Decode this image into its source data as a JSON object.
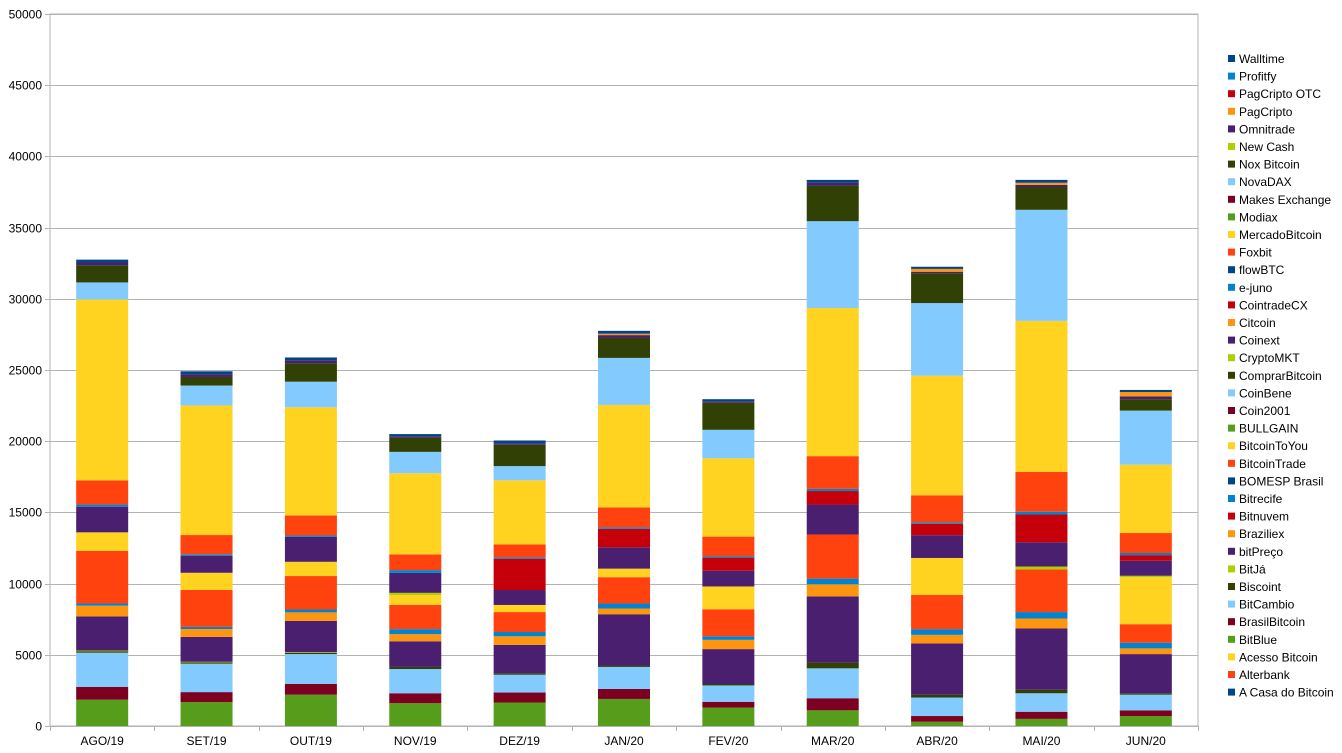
{
  "chart_data": {
    "type": "bar",
    "stacked": true,
    "title": "",
    "xlabel": "",
    "ylabel": "",
    "ylim": [
      0,
      50000
    ],
    "ytick_step": 5000,
    "grid": true,
    "legend_position": "right",
    "categories": [
      "AGO/19",
      "SET/19",
      "OUT/19",
      "NOV/19",
      "DEZ/19",
      "JAN/20",
      "FEV/20",
      "MAR/20",
      "ABR/20",
      "MAI/20",
      "JUN/20"
    ],
    "series": [
      {
        "name": "A Casa do Bitcoin",
        "color": "#004586",
        "values": [
          0,
          0,
          0,
          0,
          0,
          0,
          0,
          0,
          0,
          0,
          0
        ]
      },
      {
        "name": "Alterbank",
        "color": "#ff420e",
        "values": [
          0,
          0,
          0,
          0,
          0,
          0,
          0,
          0,
          0,
          0,
          0
        ]
      },
      {
        "name": "Acesso Bitcoin",
        "color": "#ffd320",
        "values": [
          0,
          0,
          0,
          0,
          0,
          0,
          0,
          0,
          0,
          0,
          0
        ]
      },
      {
        "name": "BitBlue",
        "color": "#579d1c",
        "values": [
          1850,
          1680,
          2200,
          1600,
          1650,
          1900,
          1300,
          1100,
          300,
          500,
          700
        ]
      },
      {
        "name": "BrasilBitcoin",
        "color": "#7e0021",
        "values": [
          900,
          700,
          750,
          700,
          700,
          700,
          400,
          850,
          400,
          500,
          400
        ]
      },
      {
        "name": "BitCambio",
        "color": "#83caff",
        "values": [
          2400,
          2000,
          2100,
          1700,
          1250,
          1550,
          1150,
          2100,
          1300,
          1300,
          1100
        ]
      },
      {
        "name": "Biscoint",
        "color": "#314004",
        "values": [
          100,
          80,
          80,
          150,
          100,
          100,
          100,
          400,
          200,
          250,
          100
        ]
      },
      {
        "name": "BitJá",
        "color": "#aecf00",
        "values": [
          50,
          50,
          50,
          0,
          0,
          0,
          0,
          0,
          0,
          0,
          0
        ]
      },
      {
        "name": "bitPreço",
        "color": "#4b1f6f",
        "values": [
          2400,
          1750,
          2200,
          1800,
          2000,
          3600,
          2450,
          4650,
          3600,
          4300,
          2750
        ]
      },
      {
        "name": "Braziliex",
        "color": "#ff950e",
        "values": [
          750,
          550,
          600,
          500,
          600,
          400,
          650,
          850,
          600,
          700,
          400
        ]
      },
      {
        "name": "Bitnuvem",
        "color": "#c5000b",
        "values": [
          0,
          0,
          0,
          0,
          0,
          0,
          0,
          0,
          0,
          0,
          0
        ]
      },
      {
        "name": "Bitrecife",
        "color": "#0084d1",
        "values": [
          150,
          150,
          200,
          350,
          300,
          350,
          250,
          400,
          400,
          450,
          400
        ]
      },
      {
        "name": "BOMESP Brasil",
        "color": "#004586",
        "values": [
          0,
          0,
          0,
          0,
          0,
          0,
          0,
          0,
          0,
          0,
          0
        ]
      },
      {
        "name": "BitcoinTrade",
        "color": "#ff420e",
        "values": [
          3700,
          2600,
          2350,
          1700,
          1400,
          1850,
          1900,
          3100,
          2400,
          3000,
          1300
        ]
      },
      {
        "name": "BitcoinToYou",
        "color": "#ffd320",
        "values": [
          0,
          0,
          0,
          0,
          0,
          0,
          0,
          0,
          0,
          0,
          0
        ]
      },
      {
        "name": "BULLGAIN",
        "color": "#579d1c",
        "values": [
          0,
          0,
          0,
          0,
          0,
          0,
          0,
          0,
          0,
          0,
          0
        ]
      },
      {
        "name": "Coin2001",
        "color": "#7e0021",
        "values": [
          0,
          0,
          0,
          0,
          0,
          0,
          0,
          0,
          0,
          0,
          0
        ]
      },
      {
        "name": "CoinBene",
        "color": "#83caff",
        "values": [
          0,
          0,
          0,
          0,
          0,
          0,
          0,
          0,
          0,
          0,
          0
        ]
      },
      {
        "name": "ComprarBitcoin",
        "color": "#314004",
        "values": [
          0,
          0,
          0,
          0,
          0,
          0,
          0,
          0,
          0,
          0,
          0
        ]
      },
      {
        "name": "CryptoMKT",
        "color": "#aecf00",
        "values": [
          0,
          0,
          0,
          0,
          0,
          0,
          0,
          0,
          0,
          0,
          0
        ]
      },
      {
        "name": "Coinext",
        "color": "#4b1f6f",
        "values": [
          0,
          0,
          0,
          0,
          0,
          0,
          0,
          0,
          0,
          0,
          0
        ]
      },
      {
        "name": "Citcoin",
        "color": "#ff950e",
        "values": [
          0,
          0,
          0,
          0,
          0,
          0,
          0,
          0,
          0,
          0,
          0
        ]
      },
      {
        "name": "CointradeCX",
        "color": "#c5000b",
        "values": [
          0,
          0,
          0,
          0,
          0,
          0,
          0,
          0,
          0,
          0,
          0
        ]
      },
      {
        "name": "e-juno",
        "color": "#0084d1",
        "values": [
          0,
          0,
          0,
          0,
          0,
          0,
          0,
          0,
          0,
          0,
          0
        ]
      },
      {
        "name": "flowBTC",
        "color": "#004586",
        "values": [
          0,
          0,
          0,
          0,
          0,
          0,
          0,
          0,
          0,
          0,
          0
        ]
      },
      {
        "name": "Foxbit",
        "color": "#ff420e",
        "values": [
          0,
          0,
          0,
          0,
          0,
          0,
          0,
          0,
          0,
          0,
          0
        ]
      },
      {
        "name": "MercadoBitcoin",
        "color": "#ffd320",
        "values": [
          1300,
          1200,
          1000,
          700,
          500,
          600,
          1600,
          0,
          2600,
          0,
          3300
        ]
      },
      {
        "name": "Modiax",
        "color": "#579d1c",
        "values": [
          0,
          0,
          0,
          0,
          0,
          0,
          0,
          0,
          0,
          0,
          0
        ]
      },
      {
        "name": "Makes Exchange",
        "color": "#7e0021",
        "values": [
          0,
          0,
          0,
          0,
          0,
          0,
          0,
          0,
          0,
          0,
          0
        ]
      },
      {
        "name": "NovaDAX",
        "color": "#83caff",
        "values": [
          0,
          0,
          0,
          0,
          0,
          0,
          0,
          0,
          0,
          0,
          0
        ]
      },
      {
        "name": "Nox Bitcoin",
        "color": "#314004",
        "values": [
          0,
          0,
          0,
          0,
          0,
          0,
          0,
          0,
          0,
          0,
          0
        ]
      },
      {
        "name": "New Cash",
        "color": "#aecf00",
        "values": [
          0,
          0,
          0,
          150,
          0,
          0,
          0,
          0,
          0,
          200,
          100
        ]
      },
      {
        "name": "Omnitrade",
        "color": "#4b1f6f",
        "values": [
          1800,
          1200,
          1750,
          1400,
          1050,
          1500,
          1100,
          2100,
          1600,
          1700,
          1050
        ]
      },
      {
        "name": "PagCripto",
        "color": "#ff950e",
        "values": [
          0,
          0,
          0,
          0,
          0,
          0,
          0,
          0,
          0,
          0,
          0
        ]
      },
      {
        "name": "PagCripto OTC",
        "color": "#c5000b",
        "values": [
          0,
          0,
          0,
          0,
          2200,
          1300,
          900,
          950,
          800,
          1950,
          400
        ]
      },
      {
        "name": "Profitfy",
        "color": "#0084d1",
        "values": [
          150,
          100,
          100,
          200,
          100,
          100,
          100,
          150,
          100,
          200,
          150
        ]
      },
      {
        "name": "Walltime",
        "color": "#004586",
        "values": [
          0,
          0,
          0,
          0,
          0,
          0,
          0,
          0,
          0,
          0,
          0
        ]
      }
    ],
    "overlay_series": [
      {
        "name": "Foxbit",
        "color": "#ff420e",
        "values": [
          1700,
          1350,
          1400,
          1100,
          900,
          1400,
          1400,
          2300,
          1900,
          2800,
          1400
        ]
      },
      {
        "name": "MercadoBitcoin",
        "color": "#ffd320",
        "values": [
          12700,
          9100,
          7600,
          5700,
          4500,
          7200,
          5500,
          10400,
          8400,
          10600,
          4800
        ]
      },
      {
        "name": "NovaDAX",
        "color": "#83caff",
        "values": [
          1200,
          1400,
          1800,
          1500,
          1000,
          3300,
          2000,
          6100,
          5100,
          7800,
          3800
        ]
      },
      {
        "name": "Nox Bitcoin",
        "color": "#314004",
        "values": [
          1200,
          600,
          1300,
          1000,
          1500,
          1400,
          1900,
          2500,
          2100,
          1600,
          800
        ]
      },
      {
        "name": "Omnitrade",
        "color": "#4b1f6f",
        "values": [
          200,
          200,
          200,
          100,
          100,
          200,
          100,
          200,
          100,
          150,
          200
        ]
      },
      {
        "name": "PagCripto",
        "color": "#ff950e",
        "values": [
          0,
          0,
          0,
          0,
          0,
          100,
          0,
          0,
          200,
          150,
          300
        ]
      },
      {
        "name": "Walltime",
        "color": "#004586",
        "values": [
          200,
          200,
          200,
          150,
          200,
          200,
          150,
          200,
          150,
          200,
          150
        ]
      }
    ]
  }
}
